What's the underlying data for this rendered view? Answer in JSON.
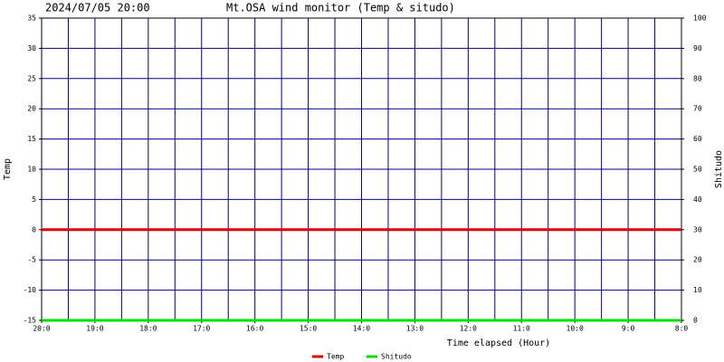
{
  "chart_data": {
    "type": "line",
    "date": "2024/07/05 20:00",
    "title": "Mt.OSA wind monitor (Temp & situdo)",
    "x_label": "Time elapsed (Hour)",
    "y_label": "Temp",
    "y2_label": "Shitudo",
    "x": [
      0,
      12
    ],
    "xlim": [
      0,
      12
    ],
    "xticks": [
      {
        "value": 0,
        "label": "20:0"
      },
      {
        "value": 1,
        "label": "19:0"
      },
      {
        "value": 2,
        "label": "18:0"
      },
      {
        "value": 3,
        "label": "17:0"
      },
      {
        "value": 4,
        "label": "16:0"
      },
      {
        "value": 5,
        "label": "15:0"
      },
      {
        "value": 6,
        "label": "14:0"
      },
      {
        "value": 7,
        "label": "13:0"
      },
      {
        "value": 8,
        "label": "12:0"
      },
      {
        "value": 9,
        "label": "11:0"
      },
      {
        "value": 10,
        "label": "10:0"
      },
      {
        "value": 11,
        "label": "9:0"
      },
      {
        "value": 12,
        "label": "8:0"
      }
    ],
    "ylim": [
      -15,
      35
    ],
    "yticks": [
      -15,
      -10,
      -5,
      0,
      5,
      10,
      15,
      20,
      25,
      30,
      35
    ],
    "y2lim": [
      0,
      100
    ],
    "y2ticks": [
      0,
      10,
      20,
      30,
      40,
      50,
      60,
      70,
      80,
      90,
      100
    ],
    "grid": true,
    "series": [
      {
        "name": "Temp",
        "color": "#e00000",
        "values": [
          0,
          0
        ]
      },
      {
        "name": "Shitudo",
        "color": "#00e000",
        "values": [
          0,
          0
        ],
        "axis": "y2"
      }
    ]
  }
}
